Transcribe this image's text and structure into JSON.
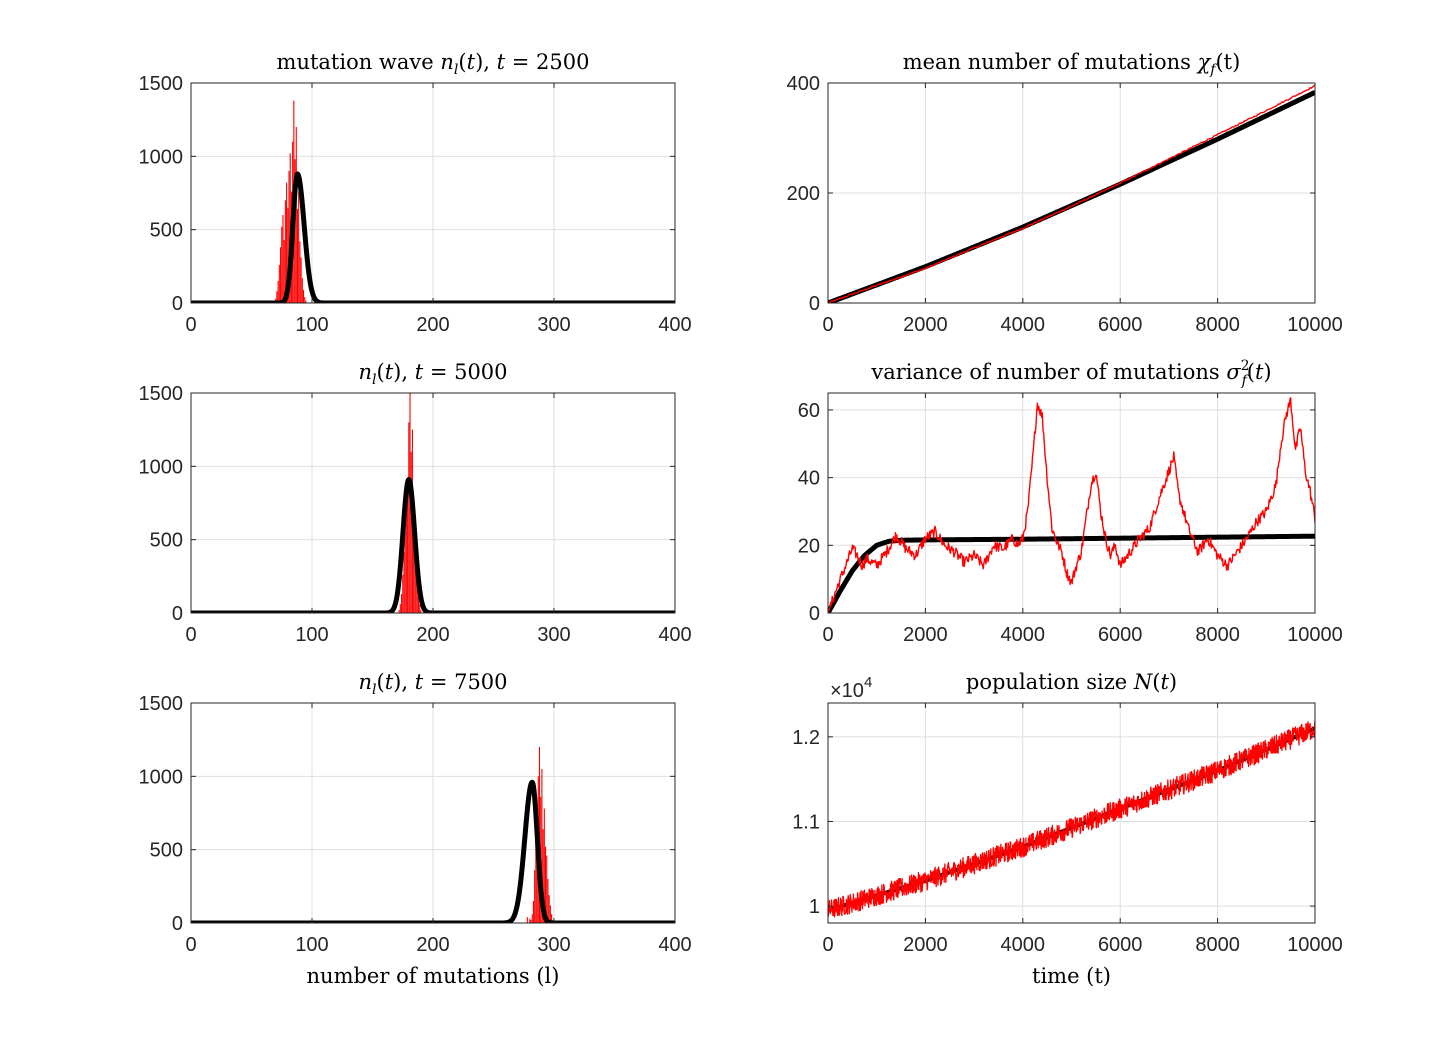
{
  "colors": {
    "theory": "#000000",
    "simulation": "#ff0000",
    "grid": "#dfdfdf",
    "axis": "#262626"
  },
  "chart_data": [
    {
      "id": "wave2500",
      "type": "bar",
      "title_parts": [
        "mutation wave ",
        "n",
        "l",
        "(",
        "t",
        "), ",
        "t",
        " = 2500"
      ],
      "xlabel": "",
      "ylabel": "",
      "xlim": [
        0,
        400
      ],
      "ylim": [
        0,
        1500
      ],
      "xticks": [
        0,
        100,
        200,
        300,
        400
      ],
      "yticks": [
        0,
        500,
        1000,
        1500
      ],
      "xtick_labels": [
        "0",
        "100",
        "200",
        "300",
        "400"
      ],
      "ytick_labels": [
        "0",
        "500",
        "1000",
        "1500"
      ],
      "grid": true,
      "theory": {
        "type": "line",
        "mu": 88,
        "sigma": 4.5,
        "peak": 880,
        "skew": -0.6
      },
      "sim_bars": {
        "l": [
          70,
          71,
          72,
          73,
          74,
          75,
          76,
          77,
          78,
          79,
          80,
          81,
          82,
          83,
          84,
          85,
          86,
          87,
          88,
          89,
          90,
          91,
          92,
          93,
          94,
          95
        ],
        "n": [
          30,
          80,
          150,
          260,
          380,
          520,
          600,
          430,
          700,
          820,
          650,
          900,
          1020,
          760,
          1100,
          1380,
          980,
          1200,
          640,
          760,
          420,
          310,
          170,
          90,
          40,
          15
        ]
      }
    },
    {
      "id": "mean",
      "type": "line",
      "title_parts": [
        "mean number of mutations ",
        "χ",
        "f",
        "(t)"
      ],
      "xlabel": "",
      "ylabel": "",
      "xlim": [
        0,
        10000
      ],
      "ylim": [
        0,
        400
      ],
      "xticks": [
        0,
        2000,
        4000,
        6000,
        8000,
        10000
      ],
      "yticks": [
        0,
        200,
        400
      ],
      "xtick_labels": [
        "0",
        "2000",
        "4000",
        "6000",
        "8000",
        "10000"
      ],
      "ytick_labels": [
        "0",
        "200",
        "400"
      ],
      "grid": true,
      "theory": {
        "x": [
          0,
          2000,
          4000,
          6000,
          8000,
          10000
        ],
        "y": [
          0,
          66,
          138,
          216,
          298,
          383
        ]
      },
      "sim": {
        "x": [
          0,
          1000,
          2000,
          3000,
          4000,
          5000,
          6000,
          7000,
          8000,
          9000,
          10000
        ],
        "y": [
          0,
          32,
          63,
          100,
          136,
          176,
          218,
          262,
          306,
          350,
          395
        ]
      }
    },
    {
      "id": "wave5000",
      "type": "bar",
      "title_parts": [
        "",
        "n",
        "l",
        "(",
        "t",
        "), ",
        "t",
        " = 5000"
      ],
      "xlabel": "",
      "ylabel": "",
      "xlim": [
        0,
        400
      ],
      "ylim": [
        0,
        1500
      ],
      "xticks": [
        0,
        100,
        200,
        300,
        400
      ],
      "yticks": [
        0,
        500,
        1000,
        1500
      ],
      "xtick_labels": [
        "0",
        "100",
        "200",
        "300",
        "400"
      ],
      "ytick_labels": [
        "0",
        "500",
        "1000",
        "1500"
      ],
      "grid": true,
      "theory": {
        "type": "line",
        "mu": 180,
        "sigma": 4.8,
        "peak": 910,
        "skew": 0
      },
      "sim_bars": {
        "l": [
          172,
          173,
          174,
          175,
          176,
          177,
          178,
          179,
          180,
          181,
          182,
          183,
          184,
          185,
          186,
          187,
          188,
          189,
          190
        ],
        "n": [
          20,
          60,
          130,
          260,
          420,
          560,
          700,
          880,
          1300,
          1500,
          1100,
          1250,
          780,
          640,
          420,
          260,
          140,
          60,
          20
        ]
      }
    },
    {
      "id": "variance",
      "type": "line",
      "title_parts": [
        "variance of number of mutations ",
        "σ",
        "2",
        "f",
        "(",
        "t",
        ")"
      ],
      "xlabel": "",
      "ylabel": "",
      "xlim": [
        0,
        10000
      ],
      "ylim": [
        0,
        65
      ],
      "xticks": [
        0,
        2000,
        4000,
        6000,
        8000,
        10000
      ],
      "yticks": [
        0,
        20,
        40,
        60
      ],
      "xtick_labels": [
        "0",
        "2000",
        "4000",
        "6000",
        "8000",
        "10000"
      ],
      "ytick_labels": [
        "0",
        "20",
        "40",
        "60"
      ],
      "grid": true,
      "theory": {
        "x": [
          0,
          250,
          500,
          750,
          1000,
          1250,
          1500,
          2000,
          4000,
          6000,
          8000,
          10000
        ],
        "y": [
          0,
          6.5,
          12.5,
          17,
          20,
          21.2,
          21.5,
          21.6,
          21.8,
          22.1,
          22.4,
          22.7
        ]
      },
      "sim": {
        "x": [
          0,
          200,
          500,
          600,
          700,
          800,
          1000,
          1200,
          1400,
          1600,
          1800,
          2000,
          2200,
          2400,
          2600,
          2800,
          3000,
          3200,
          3400,
          3600,
          3800,
          3900,
          4000,
          4100,
          4200,
          4300,
          4400,
          4500,
          4600,
          4700,
          4800,
          4900,
          5000,
          5100,
          5200,
          5300,
          5400,
          5500,
          5600,
          5700,
          5800,
          5900,
          6000,
          6200,
          6400,
          6600,
          6800,
          6900,
          7000,
          7100,
          7200,
          7400,
          7600,
          7800,
          8000,
          8200,
          8400,
          8600,
          8800,
          9000,
          9200,
          9300,
          9400,
          9500,
          9600,
          9700,
          9800,
          9900,
          10000
        ],
        "y": [
          0,
          8,
          19,
          17,
          14,
          16,
          14,
          18,
          23,
          19,
          17,
          22,
          24,
          20,
          18,
          15,
          17,
          14,
          20,
          19,
          22,
          20,
          22,
          30,
          45,
          62,
          58,
          40,
          25,
          21,
          18,
          12,
          9,
          14,
          18,
          28,
          38,
          42,
          30,
          22,
          17,
          20,
          14,
          18,
          22,
          25,
          34,
          38,
          42,
          46,
          35,
          25,
          18,
          22,
          17,
          14,
          18,
          22,
          27,
          30,
          38,
          50,
          58,
          63,
          48,
          55,
          42,
          36,
          28
        ]
      }
    },
    {
      "id": "wave7500",
      "type": "bar",
      "title_parts": [
        "",
        "n",
        "l",
        "(",
        "t",
        "), ",
        "t",
        " = 7500"
      ],
      "xlabel": "number of mutations (l)",
      "ylabel": "",
      "xlim": [
        0,
        400
      ],
      "ylim": [
        0,
        1500
      ],
      "xticks": [
        0,
        100,
        200,
        300,
        400
      ],
      "yticks": [
        0,
        500,
        1000,
        1500
      ],
      "xtick_labels": [
        "0",
        "100",
        "200",
        "300",
        "400"
      ],
      "ytick_labels": [
        "0",
        "500",
        "1000",
        "1500"
      ],
      "grid": true,
      "theory": {
        "type": "line",
        "mu": 282,
        "sigma": 5.0,
        "peak": 960,
        "skew": 0.6
      },
      "sim_bars": {
        "l": [
          278,
          280,
          281,
          282,
          283,
          284,
          285,
          286,
          287,
          288,
          289,
          290,
          291,
          292,
          293,
          294,
          295,
          296,
          297,
          298,
          299
        ],
        "n": [
          40,
          30,
          20,
          60,
          150,
          360,
          560,
          760,
          1000,
          1200,
          860,
          1050,
          640,
          780,
          520,
          460,
          300,
          190,
          120,
          60,
          20
        ]
      }
    },
    {
      "id": "popsize",
      "type": "line",
      "title_parts": [
        "population size ",
        "N",
        "(",
        "t",
        ")"
      ],
      "xlabel": "time (t)",
      "ylabel": "",
      "xlim": [
        0,
        10000
      ],
      "ylim": [
        0.98,
        1.24
      ],
      "xticks": [
        0,
        2000,
        4000,
        6000,
        8000,
        10000
      ],
      "yticks": [
        1,
        1.1,
        1.2
      ],
      "xtick_labels": [
        "0",
        "2000",
        "4000",
        "6000",
        "8000",
        "10000"
      ],
      "ytick_labels": [
        "1",
        "1.1",
        "1.2"
      ],
      "exponent_label": "×10",
      "exponent_power": "4",
      "grid": true,
      "theory": {
        "x": [
          0,
          2000,
          4000,
          6000,
          8000,
          10000
        ],
        "y": [
          0.995,
          1.03,
          1.07,
          1.115,
          1.16,
          1.21
        ]
      },
      "sim": {
        "mean_x": [
          0,
          2000,
          4000,
          6000,
          8000,
          10000
        ],
        "mean_y": [
          0.995,
          1.03,
          1.07,
          1.115,
          1.16,
          1.21
        ],
        "noise_amplitude": 0.012
      }
    }
  ]
}
